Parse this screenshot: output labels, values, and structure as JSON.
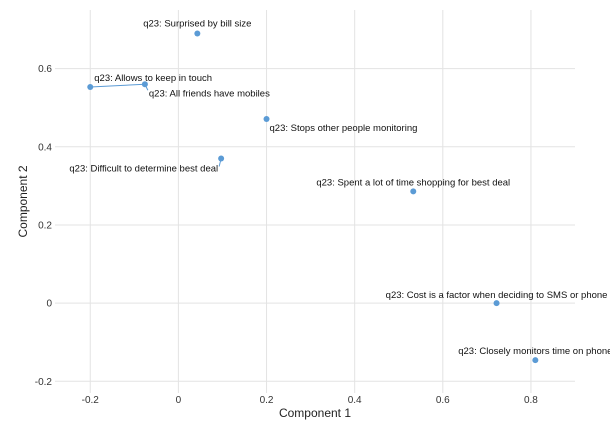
{
  "chart_data": {
    "type": "scatter",
    "title": "",
    "xlabel": "Component 1",
    "ylabel": "Component 2",
    "xlim": [
      -0.28,
      0.9
    ],
    "ylim": [
      -0.23,
      0.75
    ],
    "x_ticks": [
      "-0.2",
      "0",
      "0.2",
      "0.4",
      "0.6",
      "0.8"
    ],
    "y_ticks": [
      "-0.2",
      "0",
      "0.2",
      "0.4",
      "0.6"
    ],
    "grid": true,
    "legend": "none",
    "color": "#5b9bd5",
    "points": [
      {
        "label": "q23: Surprised by bill size",
        "x": 0.043,
        "y": 0.69
      },
      {
        "label": "q23: Allows to keep in touch",
        "x": -0.2,
        "y": 0.553
      },
      {
        "label": "q23: All friends have mobiles",
        "x": -0.076,
        "y": 0.56
      },
      {
        "label": "q23: Stops other people monitoring",
        "x": 0.2,
        "y": 0.471
      },
      {
        "label": "q23: Difficult to determine best deal",
        "x": 0.097,
        "y": 0.37
      },
      {
        "label": "q23: Spent a lot of time shopping for best deal",
        "x": 0.533,
        "y": 0.286
      },
      {
        "label": "q23: Cost is a factor when deciding to SMS or phone",
        "x": 0.722,
        "y": 0.0
      },
      {
        "label": "q23: Closely monitors time on phone",
        "x": 0.81,
        "y": -0.146
      }
    ]
  }
}
